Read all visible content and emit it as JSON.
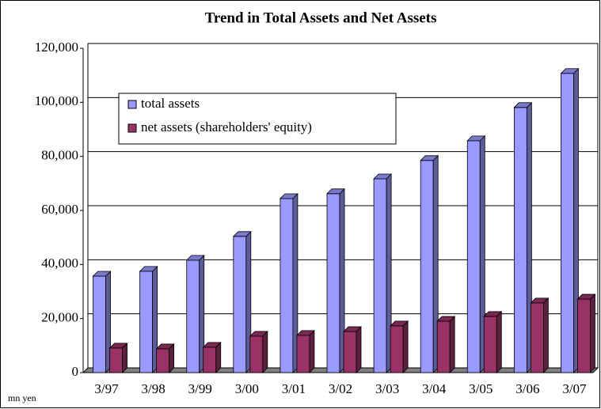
{
  "chart_data": {
    "type": "bar",
    "title": "Trend in Total Assets and Net Assets",
    "y_unit_label": "mn yen",
    "categories": [
      "3/97",
      "3/98",
      "3/99",
      "3/00",
      "3/01",
      "3/02",
      "3/03",
      "3/04",
      "3/05",
      "3/06",
      "3/07"
    ],
    "series": [
      {
        "name": "total assets",
        "color": "#9999ff",
        "values": [
          35700,
          37500,
          41600,
          50400,
          64400,
          66200,
          71700,
          78500,
          85800,
          98100,
          110700
        ]
      },
      {
        "name": "net assets (shareholders' equity)",
        "color": "#993366",
        "values": [
          9100,
          8800,
          9400,
          13500,
          13800,
          15200,
          17300,
          19000,
          20800,
          25800,
          27200
        ]
      }
    ],
    "ylim": [
      0,
      120000
    ],
    "yticks": [
      0,
      {
        "value": 20000,
        "label": "20,000"
      },
      {
        "value": 40000,
        "label": "40,000"
      },
      {
        "value": 60000,
        "label": "60,000"
      },
      {
        "value": 80000,
        "label": "80,000"
      },
      {
        "value": 100000,
        "label": "100,000"
      },
      {
        "value": 120000,
        "label": "120,000"
      }
    ],
    "grid": true,
    "legend": "upper left"
  }
}
